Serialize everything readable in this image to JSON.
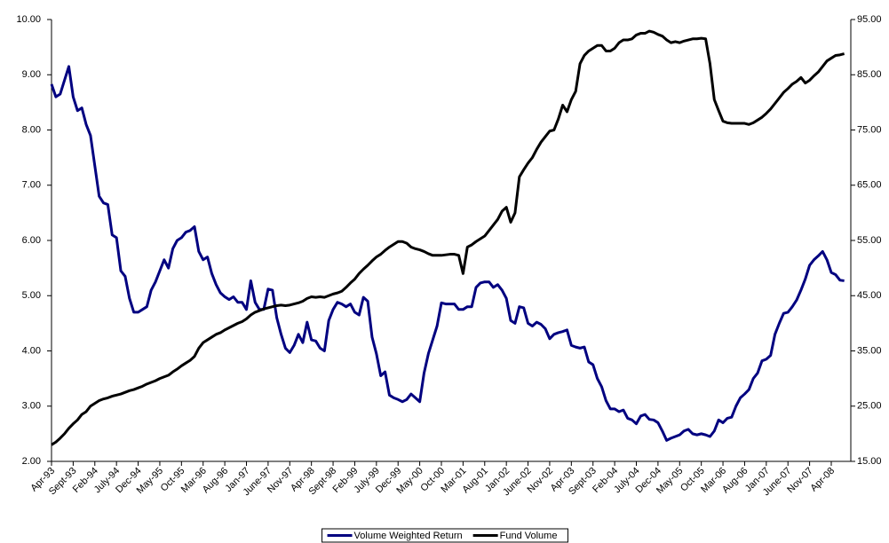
{
  "chart_data": {
    "type": "line",
    "categories": [
      "Apr-93",
      null,
      null,
      null,
      null,
      "Sept-93",
      null,
      null,
      null,
      null,
      "Feb-94",
      null,
      null,
      null,
      null,
      "July-94",
      null,
      null,
      null,
      null,
      "Dec-94",
      null,
      null,
      null,
      null,
      "May-95",
      null,
      null,
      null,
      null,
      "Oct-95",
      null,
      null,
      null,
      null,
      "Mar-96",
      null,
      null,
      null,
      null,
      "Aug-96",
      null,
      null,
      null,
      null,
      "Jan-97",
      null,
      null,
      null,
      null,
      "June-97",
      null,
      null,
      null,
      null,
      "Nov-97",
      null,
      null,
      null,
      null,
      "Apr-98",
      null,
      null,
      null,
      null,
      "Sept-98",
      null,
      null,
      null,
      null,
      "Feb-99",
      null,
      null,
      null,
      null,
      "July-99",
      null,
      null,
      null,
      null,
      "Dec-99",
      null,
      null,
      null,
      null,
      "May-00",
      null,
      null,
      null,
      null,
      "Oct-00",
      null,
      null,
      null,
      null,
      "Mar-01",
      null,
      null,
      null,
      null,
      "Aug-01",
      null,
      null,
      null,
      null,
      "Jan-02",
      null,
      null,
      null,
      null,
      "June-02",
      null,
      null,
      null,
      null,
      "Nov-02",
      null,
      null,
      null,
      null,
      "Apr-03",
      null,
      null,
      null,
      null,
      "Sept-03",
      null,
      null,
      null,
      null,
      "Feb-04",
      null,
      null,
      null,
      null,
      "July-04",
      null,
      null,
      null,
      null,
      "Dec-04",
      null,
      null,
      null,
      null,
      "May-05",
      null,
      null,
      null,
      null,
      "Oct-05",
      null,
      null,
      null,
      null,
      "Mar-06",
      null,
      null,
      null,
      null,
      "Aug-06",
      null,
      null,
      null,
      null,
      "Jan-07",
      null,
      null,
      null,
      null,
      "June-07",
      null,
      null,
      null,
      null,
      "Nov-07",
      null,
      null,
      null,
      null,
      "Apr-08",
      null,
      null,
      null
    ],
    "series": [
      {
        "name": "Volume Weighted Return",
        "color": "#000080",
        "values": [
          8.83,
          8.6,
          8.65,
          8.9,
          9.15,
          8.6,
          8.35,
          8.4,
          8.1,
          7.9,
          7.35,
          6.8,
          6.68,
          6.65,
          6.1,
          6.05,
          5.45,
          5.35,
          4.95,
          4.7,
          4.7,
          4.75,
          4.8,
          5.1,
          5.25,
          5.45,
          5.65,
          5.5,
          5.85,
          6.0,
          6.05,
          6.15,
          6.18,
          6.25,
          5.8,
          5.65,
          5.7,
          5.4,
          5.2,
          5.05,
          4.98,
          4.93,
          4.98,
          4.88,
          4.88,
          4.75,
          5.27,
          4.88,
          4.75,
          4.75,
          5.12,
          5.1,
          4.6,
          4.3,
          4.05,
          3.97,
          4.1,
          4.3,
          4.15,
          4.52,
          4.2,
          4.18,
          4.05,
          4.0,
          4.55,
          4.75,
          4.88,
          4.85,
          4.8,
          4.85,
          4.7,
          4.65,
          4.97,
          4.9,
          4.25,
          3.95,
          3.55,
          3.62,
          3.2,
          3.15,
          3.12,
          3.08,
          3.12,
          3.22,
          3.15,
          3.08,
          3.6,
          3.95,
          4.2,
          4.45,
          4.87,
          4.85,
          4.85,
          4.85,
          4.75,
          4.75,
          4.8,
          4.8,
          5.15,
          5.23,
          5.25,
          5.25,
          5.15,
          5.2,
          5.1,
          4.95,
          4.55,
          4.5,
          4.8,
          4.78,
          4.5,
          4.45,
          4.52,
          4.48,
          4.4,
          4.22,
          4.3,
          4.33,
          4.35,
          4.38,
          4.1,
          4.07,
          4.05,
          4.07,
          3.8,
          3.75,
          3.5,
          3.35,
          3.1,
          2.95,
          2.95,
          2.9,
          2.93,
          2.78,
          2.75,
          2.68,
          2.82,
          2.85,
          2.76,
          2.75,
          2.7,
          2.55,
          2.38,
          2.42,
          2.45,
          2.48,
          2.55,
          2.58,
          2.5,
          2.48,
          2.5,
          2.48,
          2.45,
          2.55,
          2.75,
          2.7,
          2.78,
          2.8,
          3.0,
          3.15,
          3.22,
          3.3,
          3.5,
          3.6,
          3.82,
          3.85,
          3.92,
          4.3,
          4.5,
          4.68,
          4.7,
          4.8,
          4.92,
          5.1,
          5.3,
          5.55,
          5.65,
          5.72,
          5.8,
          5.65,
          5.42,
          5.38,
          5.28,
          5.27
        ]
      },
      {
        "name": "Fund Volume",
        "color": "#000000",
        "axis": "y2",
        "values": [
          18.0,
          18.5,
          19.2,
          20.0,
          21.0,
          21.8,
          22.5,
          23.5,
          24.0,
          25.0,
          25.5,
          26.0,
          26.3,
          26.5,
          26.8,
          27.0,
          27.2,
          27.5,
          27.8,
          28.0,
          28.3,
          28.6,
          29.0,
          29.3,
          29.6,
          30.0,
          30.3,
          30.6,
          31.2,
          31.7,
          32.3,
          32.8,
          33.3,
          34.0,
          35.5,
          36.5,
          37.0,
          37.5,
          38.0,
          38.3,
          38.8,
          39.2,
          39.6,
          40.0,
          40.3,
          40.8,
          41.5,
          42.0,
          42.3,
          42.6,
          42.8,
          43.0,
          43.2,
          43.3,
          43.2,
          43.3,
          43.5,
          43.7,
          44.0,
          44.5,
          44.8,
          44.7,
          44.8,
          44.7,
          45.0,
          45.3,
          45.5,
          45.8,
          46.5,
          47.3,
          48.0,
          49.0,
          49.8,
          50.5,
          51.3,
          52.0,
          52.5,
          53.2,
          53.8,
          54.3,
          54.8,
          54.8,
          54.5,
          53.8,
          53.5,
          53.3,
          53.0,
          52.6,
          52.3,
          52.3,
          52.3,
          52.4,
          52.5,
          52.5,
          52.3,
          49.0,
          53.8,
          54.2,
          54.8,
          55.3,
          55.8,
          56.8,
          57.8,
          58.8,
          60.3,
          61.0,
          58.3,
          60.0,
          66.5,
          67.8,
          69.0,
          70.0,
          71.5,
          72.8,
          73.8,
          74.8,
          75.0,
          77.0,
          79.5,
          78.3,
          80.5,
          82.0,
          87.0,
          88.5,
          89.3,
          89.8,
          90.3,
          90.3,
          89.3,
          89.3,
          89.8,
          90.8,
          91.3,
          91.3,
          91.5,
          92.2,
          92.5,
          92.5,
          92.9,
          92.7,
          92.3,
          92.0,
          91.3,
          90.8,
          91.0,
          90.8,
          91.1,
          91.3,
          91.5,
          91.5,
          91.6,
          91.5,
          87.0,
          80.5,
          78.5,
          76.6,
          76.3,
          76.2,
          76.2,
          76.2,
          76.2,
          76.0,
          76.3,
          76.8,
          77.3,
          78.0,
          78.8,
          79.8,
          80.8,
          81.8,
          82.5,
          83.3,
          83.8,
          84.5,
          83.5,
          84.0,
          84.8,
          85.5,
          86.5,
          87.5,
          88.0,
          88.5,
          88.6,
          88.8
        ]
      }
    ],
    "ylim": [
      2,
      10
    ],
    "yticks": [
      {
        "value": 2,
        "label": "2.00"
      },
      {
        "value": 3,
        "label": "3.00"
      },
      {
        "value": 4,
        "label": "4.00"
      },
      {
        "value": 5,
        "label": "5.00"
      },
      {
        "value": 6,
        "label": "6.00"
      },
      {
        "value": 7,
        "label": "7.00"
      },
      {
        "value": 8,
        "label": "8.00"
      },
      {
        "value": 9,
        "label": "9.00"
      },
      {
        "value": 10,
        "label": "10.00"
      }
    ],
    "y2lim": [
      15,
      95
    ],
    "y2ticks": [
      {
        "value": 15,
        "label": "15.00"
      },
      {
        "value": 25,
        "label": "25.00"
      },
      {
        "value": 35,
        "label": "35.00"
      },
      {
        "value": 45,
        "label": "45.00"
      },
      {
        "value": 55,
        "label": "55.00"
      },
      {
        "value": 65,
        "label": "65.00"
      },
      {
        "value": 75,
        "label": "75.00"
      },
      {
        "value": 85,
        "label": "85.00"
      },
      {
        "value": 95,
        "label": "95.00"
      }
    ],
    "legend": "bottom",
    "grid": false
  }
}
